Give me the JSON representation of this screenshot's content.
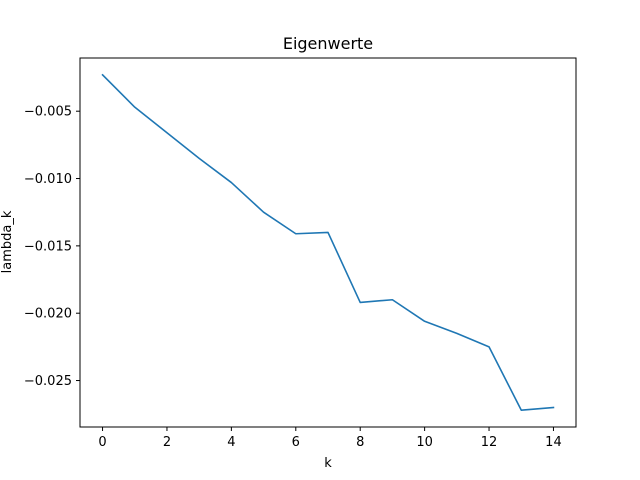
{
  "chart_data": {
    "type": "line",
    "title": "Eigenwerte",
    "xlabel": "k",
    "ylabel": "lambda_k",
    "x": [
      0,
      1,
      2,
      3,
      4,
      5,
      6,
      7,
      8,
      9,
      10,
      11,
      12,
      13,
      14
    ],
    "series": [
      {
        "values": [
          -0.0023,
          -0.0047,
          -0.0066,
          -0.0085,
          -0.0103,
          -0.0125,
          -0.0141,
          -0.014,
          -0.0192,
          -0.019,
          -0.0206,
          -0.0215,
          -0.0225,
          -0.0272,
          -0.027
        ],
        "color": "#1f77b4"
      }
    ],
    "xlim": [
      -0.7,
      14.7
    ],
    "ylim": [
      -0.02845,
      -0.00105
    ],
    "xticks": [
      0,
      2,
      4,
      6,
      8,
      10,
      12,
      14
    ],
    "xtick_labels": [
      "0",
      "2",
      "4",
      "6",
      "8",
      "10",
      "12",
      "14"
    ],
    "yticks": [
      -0.005,
      -0.01,
      -0.015,
      -0.02,
      -0.025
    ],
    "ytick_labels": [
      "−0.005",
      "−0.010",
      "−0.015",
      "−0.020",
      "−0.025"
    ],
    "grid": false,
    "legend": "none"
  }
}
